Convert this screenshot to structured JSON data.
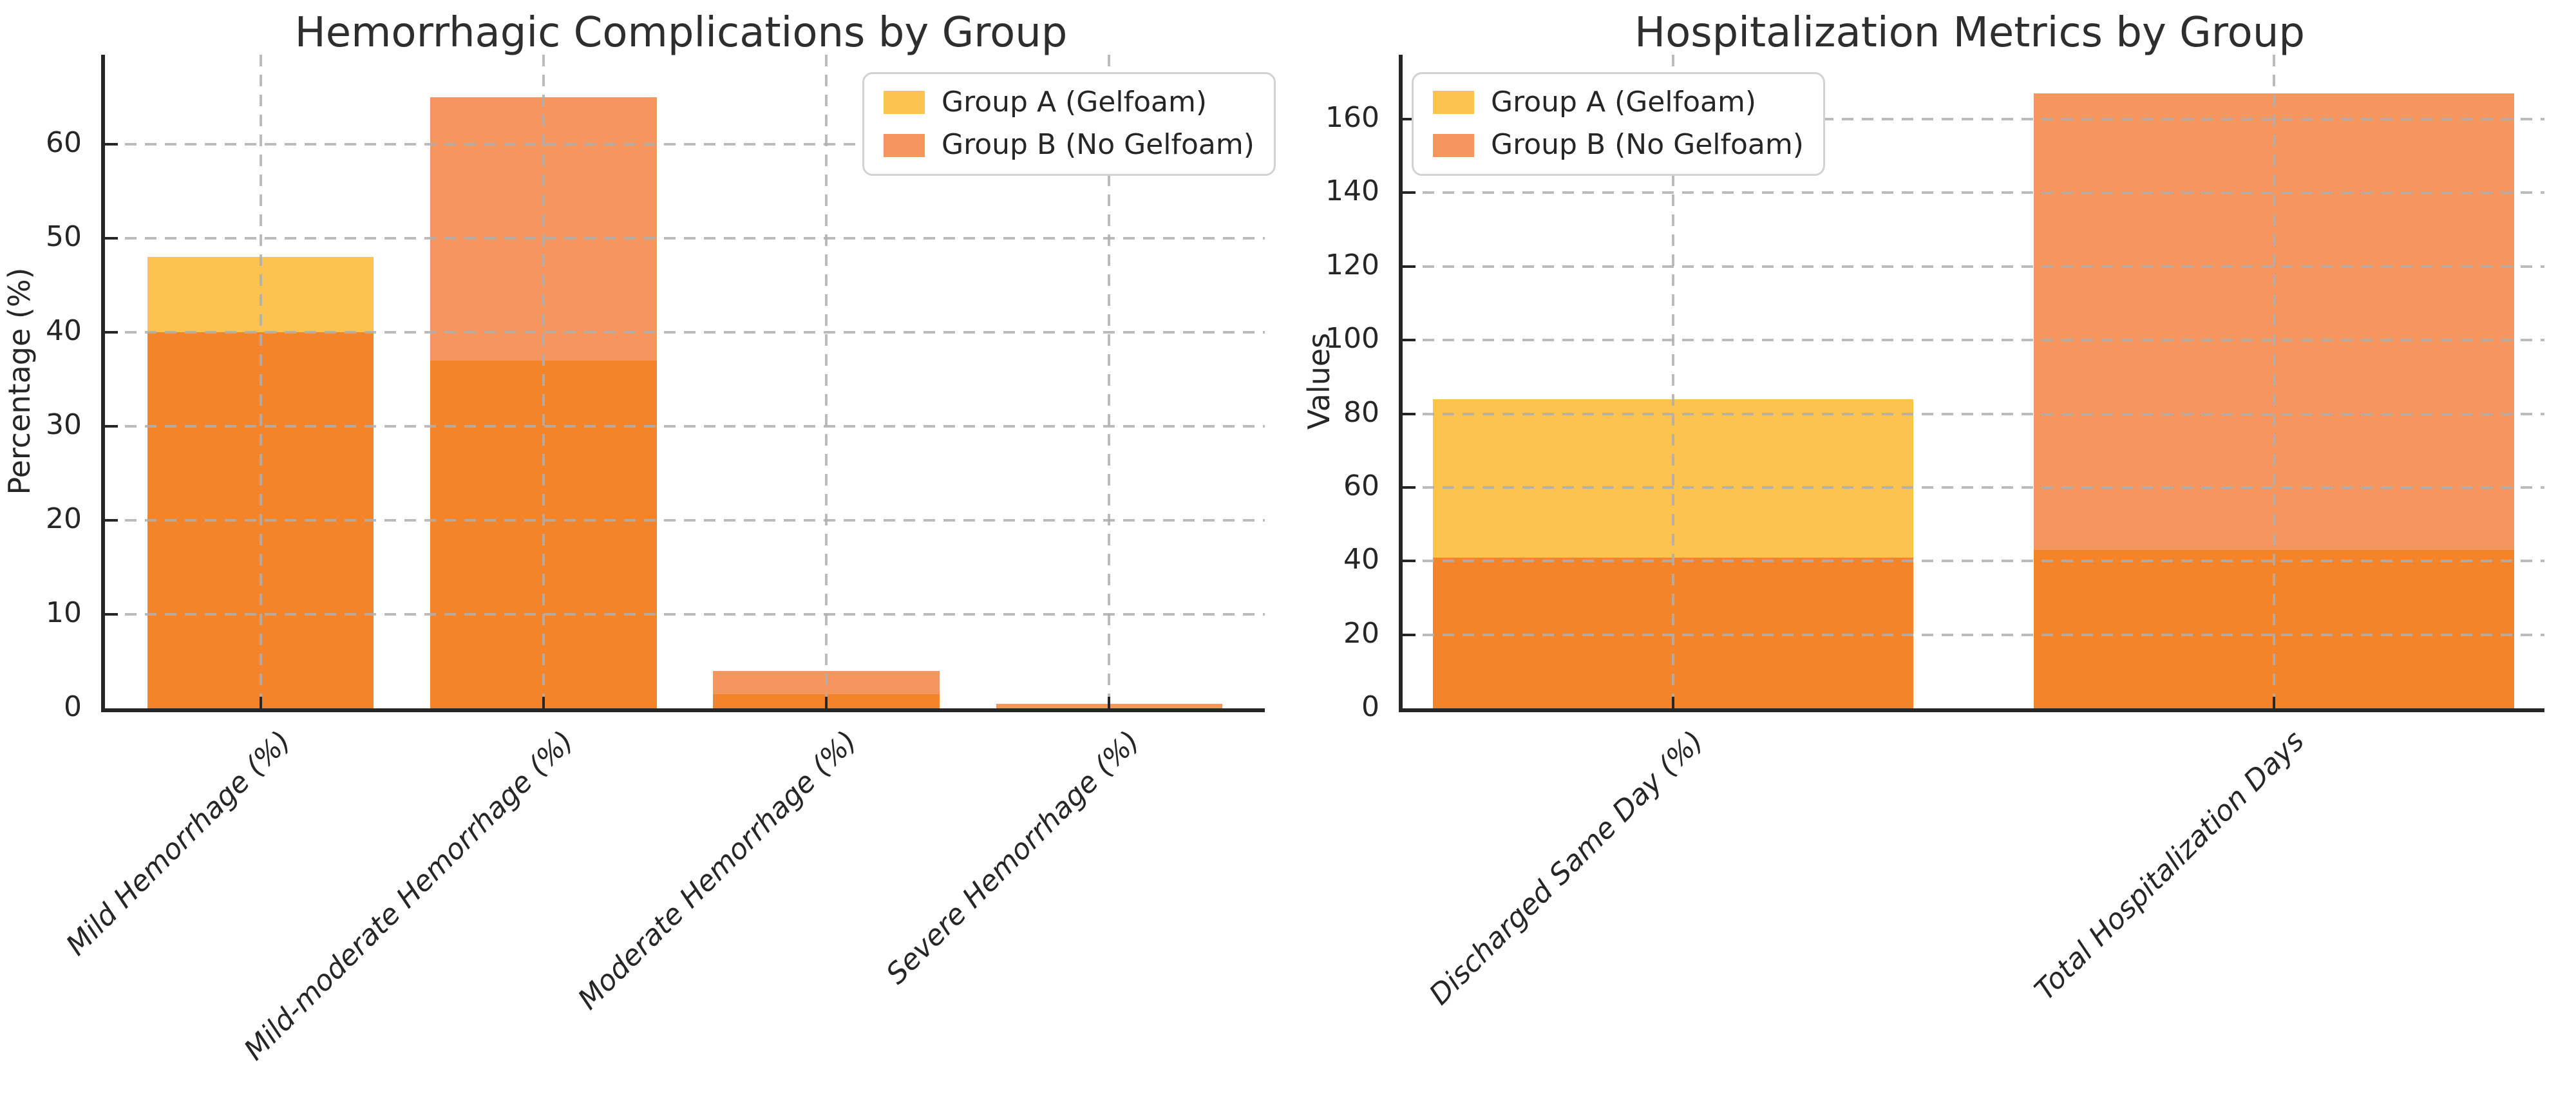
{
  "figure": {
    "background": "#ffffff"
  },
  "colors": {
    "group_a": "#FCC34F",
    "group_b": "rgba(239,106,26,0.7)",
    "group_b_base": "#EF6A1A",
    "overlap_rendered": "#F3852A",
    "grid": "#AFAFAF",
    "spine": "#262626",
    "text": "#2e2e2e",
    "legend_border": "#d2d2d2"
  },
  "legend": {
    "items": [
      {
        "label": "Group A (Gelfoam)",
        "color_key": "group_a"
      },
      {
        "label": "Group B (No Gelfoam)",
        "color_key": "group_b"
      }
    ]
  },
  "chart_data": [
    {
      "type": "bar",
      "title": "Hemorrhagic Complications by Group",
      "xlabel": "",
      "ylabel": "Percentage (%)",
      "categories": [
        "Mild Hemorrhage (%)",
        "Mild-moderate Hemorrhage (%)",
        "Moderate Hemorrhage (%)",
        "Severe Hemorrhage (%)"
      ],
      "series": [
        {
          "name": "Group A (Gelfoam)",
          "values": [
            48,
            37,
            1.5,
            0
          ]
        },
        {
          "name": "Group B (No Gelfoam)",
          "values": [
            40,
            65,
            4,
            0.5
          ]
        }
      ],
      "yticks": [
        0,
        10,
        20,
        30,
        40,
        50,
        60
      ],
      "ylim": [
        0,
        69.5
      ],
      "grid": "dashed, both axes, drawn over bars",
      "legend_position": "top-right",
      "bars_overlap": "Group B drawn translucent on top of Group A at same x"
    },
    {
      "type": "bar",
      "title": "Hospitalization Metrics by Group",
      "xlabel": "",
      "ylabel": "Values",
      "categories": [
        "Discharged Same Day (%)",
        "Total Hospitalization Days"
      ],
      "series": [
        {
          "name": "Group A (Gelfoam)",
          "values": [
            84,
            43
          ]
        },
        {
          "name": "Group B (No Gelfoam)",
          "values": [
            41,
            167
          ]
        }
      ],
      "yticks": [
        0,
        20,
        40,
        60,
        80,
        100,
        120,
        140,
        160
      ],
      "ylim": [
        0,
        177.5
      ],
      "grid": "dashed, both axes, drawn over bars",
      "legend_position": "top-left",
      "bars_overlap": "Group B drawn translucent on top of Group A at same x"
    }
  ]
}
